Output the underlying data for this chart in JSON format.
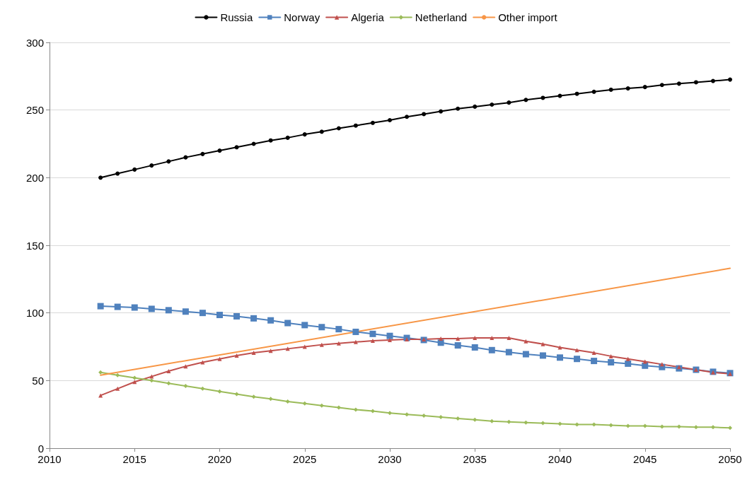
{
  "chart_data": {
    "type": "line",
    "x": [
      2013,
      2014,
      2015,
      2016,
      2017,
      2018,
      2019,
      2020,
      2021,
      2022,
      2023,
      2024,
      2025,
      2026,
      2027,
      2028,
      2029,
      2030,
      2031,
      2032,
      2033,
      2034,
      2035,
      2036,
      2037,
      2038,
      2039,
      2040,
      2041,
      2042,
      2043,
      2044,
      2045,
      2046,
      2047,
      2048,
      2049,
      2050
    ],
    "series": [
      {
        "name": "Russia",
        "color": "#000000",
        "marker": "circle",
        "values": [
          200,
          203,
          206,
          209,
          212,
          215,
          217.5,
          220,
          222.5,
          225,
          227.5,
          229.5,
          232,
          234,
          236.5,
          238.5,
          240.5,
          242.5,
          245,
          247,
          249,
          251,
          252.5,
          254,
          255.5,
          257.5,
          259,
          260.5,
          262,
          263.5,
          265,
          266,
          267,
          268.5,
          269.5,
          270.5,
          271.5,
          272.5
        ]
      },
      {
        "name": "Norway",
        "color": "#4f81bd",
        "marker": "square",
        "values": [
          105,
          104.5,
          104,
          103,
          102,
          101,
          100,
          98.5,
          97.5,
          96,
          94.5,
          92.5,
          91,
          89.5,
          88,
          86,
          84.5,
          83,
          81.5,
          80,
          78,
          76,
          74.5,
          72.5,
          71,
          69.5,
          68.5,
          67,
          66,
          64.5,
          63.5,
          62.5,
          61,
          60,
          59,
          58,
          56.5,
          55.5
        ]
      },
      {
        "name": "Algeria",
        "color": "#c0504d",
        "marker": "triangle",
        "values": [
          39,
          44,
          49,
          53,
          57,
          60.5,
          63.5,
          66,
          68.5,
          70.5,
          72,
          73.5,
          75,
          76.5,
          77.5,
          78.5,
          79.5,
          80,
          80.5,
          80.5,
          81,
          81,
          81.5,
          81.5,
          81.5,
          79,
          77,
          74.5,
          72.5,
          70.5,
          68,
          66,
          64,
          62,
          60,
          58,
          56,
          55
        ]
      },
      {
        "name": "Netherland",
        "color": "#9bbb59",
        "marker": "diamond",
        "values": [
          56,
          54,
          52,
          50,
          48,
          46,
          44,
          42,
          40,
          38,
          36.5,
          34.5,
          33,
          31.5,
          30,
          28.5,
          27.5,
          26,
          25,
          24,
          23,
          22,
          21,
          20,
          19.5,
          19,
          18.5,
          18,
          17.5,
          17.5,
          17,
          16.5,
          16.5,
          16,
          16,
          15.5,
          15.5,
          15
        ]
      },
      {
        "name": "Other import",
        "color": "#f79646",
        "marker": "none",
        "x": [
          2013,
          2050
        ],
        "values": [
          54,
          133
        ]
      }
    ],
    "xlim": [
      2010,
      2050
    ],
    "xticks": [
      2010,
      2015,
      2020,
      2025,
      2030,
      2035,
      2040,
      2045,
      2050
    ],
    "ylim": [
      0,
      300
    ],
    "yticks": [
      0,
      50,
      100,
      150,
      200,
      250,
      300
    ],
    "grid": "y",
    "legend": "top",
    "line_style": "solid"
  }
}
